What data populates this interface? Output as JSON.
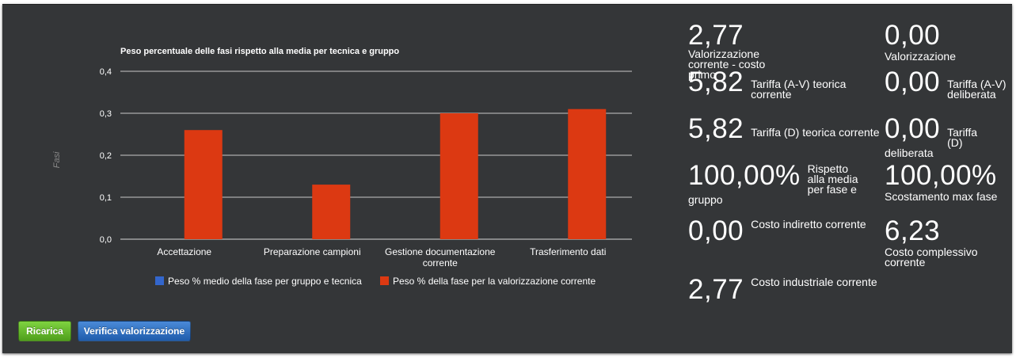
{
  "chart_data": {
    "type": "bar",
    "title": "Peso percentuale delle fasi rispetto alla media per tecnica e gruppo",
    "ylabel": "Fasi",
    "xlabel": "",
    "ylim": [
      0,
      0.4
    ],
    "y_ticks": [
      "0,0",
      "0,1",
      "0,2",
      "0,3",
      "0,4"
    ],
    "categories": [
      [
        "Accettazione"
      ],
      [
        "Preparazione campioni"
      ],
      [
        "Gestione documentazione",
        "corrente"
      ],
      [
        "Trasferimento dati"
      ]
    ],
    "series": [
      {
        "name": "Peso % medio della fase per gruppo e tecnica",
        "color": "#3366cc",
        "values": [
          0,
          0,
          0,
          0
        ]
      },
      {
        "name": "Peso % della fase per la valorizzazione corrente",
        "color": "#dc3912",
        "values": [
          0.26,
          0.13,
          0.3,
          0.31
        ]
      }
    ],
    "legend_position": "bottom",
    "grid": true
  },
  "kpis": {
    "valorizzazione_corrente": {
      "value": "2,77",
      "label": "Valorizzazione corrente - costo primo"
    },
    "valorizzazione": {
      "value": "0,00",
      "label": "Valorizzazione"
    },
    "tariffa_av_teorica": {
      "value": "5,82",
      "label": "Tariffa (A-V) teorica corrente"
    },
    "tariffa_av_deliberata": {
      "value": "0,00",
      "label": "Tariffa (A-V) deliberata"
    },
    "tariffa_d_teorica": {
      "value": "5,82",
      "label": "Tariffa (D) teorica corrente"
    },
    "tariffa_d_deliberata": {
      "value": "0,00",
      "label": "Tariffa (D) deliberata"
    },
    "rispetto_media": {
      "value": "100,00%",
      "label": "Rispetto alla media per fase e gruppo"
    },
    "scostamento_max": {
      "value": "100,00%",
      "label": "Scostamento max fase"
    },
    "costo_indiretto": {
      "value": "0,00",
      "label": "Costo indiretto corrente"
    },
    "costo_complessivo": {
      "value": "6,23",
      "label": "Costo complessivo corrente"
    },
    "costo_industriale": {
      "value": "2,77",
      "label": "Costo industriale corrente"
    }
  },
  "buttons": {
    "ricarica": "Ricarica",
    "verifica": "Verifica valorizzazione"
  }
}
